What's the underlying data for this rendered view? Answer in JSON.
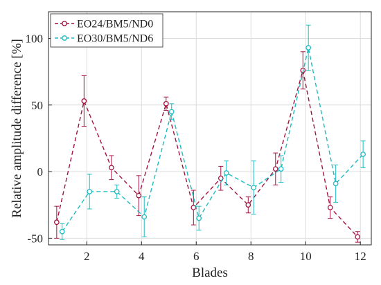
{
  "chart_data": {
    "type": "line",
    "title": "",
    "xlabel": "Blades",
    "ylabel": "Relative amplitude difference [%]",
    "xlim": [
      0.6,
      12.4
    ],
    "ylim": [
      -55,
      120
    ],
    "xticks": [
      2,
      4,
      6,
      8,
      10,
      12
    ],
    "yticks": [
      -50,
      0,
      50,
      100
    ],
    "grid": true,
    "legend_position": "top-left",
    "series": [
      {
        "name": "EO24/BM5/ND0",
        "color": "#a3123f",
        "marker": "circle",
        "dash": true,
        "x": [
          0.9,
          1.9,
          2.9,
          3.9,
          4.9,
          5.9,
          6.9,
          7.9,
          8.9,
          9.9,
          10.9,
          11.9
        ],
        "y": [
          -38,
          53,
          3,
          -18,
          51,
          -27,
          -5,
          -25,
          2,
          76,
          -27,
          -49
        ],
        "err": [
          12,
          19,
          9,
          15,
          5,
          13,
          9,
          6,
          12,
          14,
          8,
          4
        ]
      },
      {
        "name": "EO30/BM5/ND6",
        "color": "#1bbcc2",
        "marker": "circle",
        "dash": true,
        "x": [
          1.1,
          2.1,
          3.1,
          4.1,
          5.1,
          6.1,
          7.1,
          8.1,
          9.1,
          10.1,
          11.1,
          12.1
        ],
        "y": [
          -45,
          -15,
          -15,
          -34,
          45,
          -35,
          -1,
          -12,
          2,
          93,
          -9,
          13
        ],
        "err": [
          6,
          13,
          5,
          15,
          6,
          9,
          9,
          20,
          10,
          17,
          14,
          10
        ]
      }
    ]
  }
}
